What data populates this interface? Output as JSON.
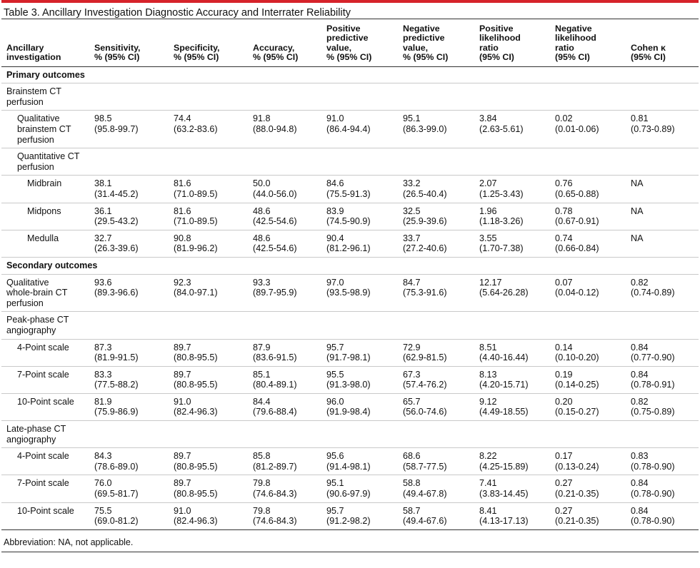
{
  "table_title": "Table 3. Ancillary Investigation Diagnostic Accuracy and Interrater Reliability",
  "headers": [
    [
      "Ancillary",
      "investigation"
    ],
    [
      "Sensitivity,",
      "% (95% CI)"
    ],
    [
      "Specificity,",
      "% (95% CI)"
    ],
    [
      "Accuracy,",
      "% (95% CI)"
    ],
    [
      "Positive",
      "predictive",
      "value,",
      "% (95% CI)"
    ],
    [
      "Negative",
      "predictive",
      "value,",
      "% (95% CI)"
    ],
    [
      "Positive",
      "likelihood",
      "ratio",
      "(95% CI)"
    ],
    [
      "Negative",
      "likelihood",
      "ratio",
      "(95% CI)"
    ],
    [
      "Cohen κ",
      "(95% CI)"
    ]
  ],
  "rows": [
    {
      "type": "section",
      "label": "Primary outcomes"
    },
    {
      "type": "group",
      "indent": 0,
      "label": [
        "Brainstem CT",
        "perfusion"
      ]
    },
    {
      "type": "data",
      "indent": 1,
      "label": [
        "Qualitative",
        "brainstem CT",
        "perfusion"
      ],
      "cells": [
        [
          "98.5",
          "(95.8-99.7)"
        ],
        [
          "74.4",
          "(63.2-83.6)"
        ],
        [
          "91.8",
          "(88.0-94.8)"
        ],
        [
          "91.0",
          "(86.4-94.4)"
        ],
        [
          "95.1",
          "(86.3-99.0)"
        ],
        [
          "3.84",
          "(2.63-5.61)"
        ],
        [
          "0.02",
          "(0.01-0.06)"
        ],
        [
          "0.81",
          "(0.73-0.89)"
        ]
      ]
    },
    {
      "type": "group",
      "indent": 1,
      "label": [
        "Quantitative CT",
        "perfusion"
      ]
    },
    {
      "type": "data",
      "indent": 2,
      "label": [
        "Midbrain"
      ],
      "cells": [
        [
          "38.1",
          "(31.4-45.2)"
        ],
        [
          "81.6",
          "(71.0-89.5)"
        ],
        [
          "50.0",
          "(44.0-56.0)"
        ],
        [
          "84.6",
          "(75.5-91.3)"
        ],
        [
          "33.2",
          "(26.5-40.4)"
        ],
        [
          "2.07",
          "(1.25-3.43)"
        ],
        [
          "0.76",
          "(0.65-0.88)"
        ],
        [
          "NA"
        ]
      ]
    },
    {
      "type": "data",
      "indent": 2,
      "label": [
        "Midpons"
      ],
      "cells": [
        [
          "36.1",
          "(29.5-43.2)"
        ],
        [
          "81.6",
          "(71.0-89.5)"
        ],
        [
          "48.6",
          "(42.5-54.6)"
        ],
        [
          "83.9",
          "(74.5-90.9)"
        ],
        [
          "32.5",
          "(25.9-39.6)"
        ],
        [
          "1.96",
          "(1.18-3.26)"
        ],
        [
          "0.78",
          "(0.67-0.91)"
        ],
        [
          "NA"
        ]
      ]
    },
    {
      "type": "data",
      "indent": 2,
      "label": [
        "Medulla"
      ],
      "cells": [
        [
          "32.7",
          "(26.3-39.6)"
        ],
        [
          "90.8",
          "(81.9-96.2)"
        ],
        [
          "48.6",
          "(42.5-54.6)"
        ],
        [
          "90.4",
          "(81.2-96.1)"
        ],
        [
          "33.7",
          "(27.2-40.6)"
        ],
        [
          "3.55",
          "(1.70-7.38)"
        ],
        [
          "0.74",
          "(0.66-0.84)"
        ],
        [
          "NA"
        ]
      ]
    },
    {
      "type": "section",
      "label": "Secondary outcomes"
    },
    {
      "type": "data",
      "indent": 0,
      "label": [
        "Qualitative",
        "whole-brain CT",
        "perfusion"
      ],
      "cells": [
        [
          "93.6",
          "(89.3-96.6)"
        ],
        [
          "92.3",
          "(84.0-97.1)"
        ],
        [
          "93.3",
          "(89.7-95.9)"
        ],
        [
          "97.0",
          "(93.5-98.9)"
        ],
        [
          "84.7",
          "(75.3-91.6)"
        ],
        [
          "12.17",
          "(5.64-26.28)"
        ],
        [
          "0.07",
          "(0.04-0.12)"
        ],
        [
          "0.82",
          "(0.74-0.89)"
        ]
      ]
    },
    {
      "type": "group",
      "indent": 0,
      "label": [
        "Peak-phase CT",
        "angiography"
      ]
    },
    {
      "type": "data",
      "indent": 1,
      "label": [
        "4-Point scale"
      ],
      "cells": [
        [
          "87.3",
          "(81.9-91.5)"
        ],
        [
          "89.7",
          "(80.8-95.5)"
        ],
        [
          "87.9",
          "(83.6-91.5)"
        ],
        [
          "95.7",
          "(91.7-98.1)"
        ],
        [
          "72.9",
          "(62.9-81.5)"
        ],
        [
          "8.51",
          "(4.40-16.44)"
        ],
        [
          "0.14",
          "(0.10-0.20)"
        ],
        [
          "0.84",
          "(0.77-0.90)"
        ]
      ]
    },
    {
      "type": "data",
      "indent": 1,
      "label": [
        "7-Point scale"
      ],
      "cells": [
        [
          "83.3",
          "(77.5-88.2)"
        ],
        [
          "89.7",
          "(80.8-95.5)"
        ],
        [
          "85.1",
          "(80.4-89.1)"
        ],
        [
          "95.5",
          "(91.3-98.0)"
        ],
        [
          "67.3",
          "(57.4-76.2)"
        ],
        [
          "8.13",
          "(4.20-15.71)"
        ],
        [
          "0.19",
          "(0.14-0.25)"
        ],
        [
          "0.84",
          "(0.78-0.91)"
        ]
      ]
    },
    {
      "type": "data",
      "indent": 1,
      "label": [
        "10-Point scale"
      ],
      "cells": [
        [
          "81.9",
          "(75.9-86.9)"
        ],
        [
          "91.0",
          "(82.4-96.3)"
        ],
        [
          "84.4",
          "(79.6-88.4)"
        ],
        [
          "96.0",
          "(91.9-98.4)"
        ],
        [
          "65.7",
          "(56.0-74.6)"
        ],
        [
          "9.12",
          "(4.49-18.55)"
        ],
        [
          "0.20",
          "(0.15-0.27)"
        ],
        [
          "0.82",
          "(0.75-0.89)"
        ]
      ]
    },
    {
      "type": "group",
      "indent": 0,
      "label": [
        "Late-phase CT",
        "angiography"
      ]
    },
    {
      "type": "data",
      "indent": 1,
      "label": [
        "4-Point scale"
      ],
      "cells": [
        [
          "84.3",
          "(78.6-89.0)"
        ],
        [
          "89.7",
          "(80.8-95.5)"
        ],
        [
          "85.8",
          "(81.2-89.7)"
        ],
        [
          "95.6",
          "(91.4-98.1)"
        ],
        [
          "68.6",
          "(58.7-77.5)"
        ],
        [
          "8.22",
          "(4.25-15.89)"
        ],
        [
          "0.17",
          "(0.13-0.24)"
        ],
        [
          "0.83",
          "(0.78-0.90)"
        ]
      ]
    },
    {
      "type": "data",
      "indent": 1,
      "label": [
        "7-Point scale"
      ],
      "cells": [
        [
          "76.0",
          "(69.5-81.7)"
        ],
        [
          "89.7",
          "(80.8-95.5)"
        ],
        [
          "79.8",
          "(74.6-84.3)"
        ],
        [
          "95.1",
          "(90.6-97.9)"
        ],
        [
          "58.8",
          "(49.4-67.8)"
        ],
        [
          "7.41",
          "(3.83-14.45)"
        ],
        [
          "0.27",
          "(0.21-0.35)"
        ],
        [
          "0.84",
          "(0.78-0.90)"
        ]
      ]
    },
    {
      "type": "data",
      "indent": 1,
      "label": [
        "10-Point scale"
      ],
      "cells": [
        [
          "75.5",
          "(69.0-81.2)"
        ],
        [
          "91.0",
          "(82.4-96.3)"
        ],
        [
          "79.8",
          "(74.6-84.3)"
        ],
        [
          "95.7",
          "(91.2-98.2)"
        ],
        [
          "58.7",
          "(49.4-67.6)"
        ],
        [
          "8.41",
          "(4.13-17.13)"
        ],
        [
          "0.27",
          "(0.21-0.35)"
        ],
        [
          "0.84",
          "(0.78-0.90)"
        ]
      ]
    }
  ],
  "footnote": "Abbreviation: NA, not applicable."
}
